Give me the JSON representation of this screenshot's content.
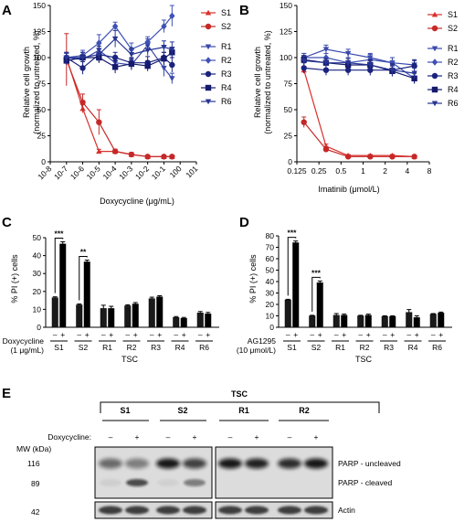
{
  "panels": {
    "A": {
      "label": "A",
      "chart_data": {
        "type": "line",
        "xlabel": "Doxycycline (μg/mL)",
        "ylabel": [
          "Relative cell growth",
          "(normalized to untreated, %)"
        ],
        "xscale": "log",
        "xticks": [
          "10-8",
          "10-7",
          "10-6",
          "10-5",
          "10-4",
          "10-3",
          "10-2",
          "10-1",
          "100",
          "101"
        ],
        "xlim": [
          -8,
          1
        ],
        "ylim": [
          0,
          150
        ],
        "yticks": [
          0,
          25,
          50,
          75,
          100,
          125,
          150
        ],
        "x": [
          -7,
          -6,
          -5,
          -4,
          -3,
          -2,
          -1,
          -0.5
        ],
        "legend_position": "right",
        "series": [
          {
            "name": "S1",
            "color": "#d9302b",
            "marker": "triangle-up",
            "values": [
              100,
              51,
              10,
              10,
              7,
              5,
              5,
              5
            ],
            "errors": [
              5,
              4,
              2,
              2,
              1,
              1,
              1,
              1
            ]
          },
          {
            "name": "S2",
            "color": "#c62828",
            "marker": "circle",
            "values": [
              98,
              57,
              38,
              10,
              7,
              5,
              5,
              5
            ],
            "errors": [
              25,
              8,
              12,
              2,
              2,
              1,
              1,
              1
            ]
          },
          {
            "name": "R1",
            "color": "#3949ab",
            "marker": "triangle-down",
            "values": [
              100,
              98,
              107,
              95,
              93,
              112,
              90,
              80
            ],
            "errors": [
              4,
              5,
              7,
              5,
              5,
              6,
              8,
              5
            ]
          },
          {
            "name": "R2",
            "color": "#3f51b5",
            "marker": "diamond",
            "values": [
              100,
              102,
              114,
              130,
              108,
              115,
              130,
              140
            ],
            "errors": [
              4,
              5,
              8,
              4,
              6,
              5,
              6,
              10
            ]
          },
          {
            "name": "R3",
            "color": "#1a237e",
            "marker": "circle",
            "values": [
              100,
              90,
              103,
              100,
              95,
              95,
              100,
              93
            ],
            "errors": [
              5,
              6,
              8,
              5,
              5,
              6,
              5,
              7
            ]
          },
          {
            "name": "R4",
            "color": "#151a6e",
            "marker": "square",
            "values": [
              97,
              100,
              100,
              91,
              94,
              92,
              99,
              105
            ],
            "errors": [
              4,
              5,
              5,
              6,
              5,
              5,
              6,
              5
            ]
          },
          {
            "name": "R6",
            "color": "#283593",
            "marker": "triangle-down",
            "values": [
              100,
              100,
              103,
              118,
              103,
              107,
              110,
              108
            ],
            "errors": [
              5,
              5,
              6,
              8,
              6,
              5,
              6,
              7
            ]
          }
        ]
      }
    },
    "B": {
      "label": "B",
      "chart_data": {
        "type": "line",
        "xlabel": "Imatinib (μmol/L)",
        "ylabel": [
          "Relative cell growth",
          "(normalized to untreated, %)"
        ],
        "xscale": "log2",
        "xticks": [
          "0.125",
          "0.25",
          "0.5",
          "1",
          "2",
          "4",
          "8"
        ],
        "xlim": [
          0.125,
          8
        ],
        "ylim": [
          0,
          150
        ],
        "yticks": [
          0,
          25,
          50,
          75,
          100,
          125,
          150
        ],
        "x": [
          0.156,
          0.3125,
          0.625,
          1.25,
          2.5,
          5
        ],
        "legend_position": "right",
        "series": [
          {
            "name": "S1",
            "color": "#d9302b",
            "marker": "triangle-up",
            "values": [
              88,
              15,
              6,
              6,
              6,
              5
            ],
            "errors": [
              3,
              2,
              1,
              1,
              1,
              1
            ]
          },
          {
            "name": "S2",
            "color": "#c62828",
            "marker": "circle",
            "values": [
              38,
              12,
              5,
              5,
              5,
              5
            ],
            "errors": [
              5,
              2,
              1,
              1,
              1,
              1
            ]
          },
          {
            "name": "R1",
            "color": "#3949ab",
            "marker": "triangle-down",
            "values": [
              100,
              108,
              104,
              100,
              95,
              93
            ],
            "errors": [
              4,
              4,
              4,
              4,
              5,
              4
            ]
          },
          {
            "name": "R2",
            "color": "#3f51b5",
            "marker": "diamond",
            "values": [
              100,
              100,
              95,
              98,
              95,
              80
            ],
            "errors": [
              4,
              4,
              5,
              5,
              5,
              5
            ]
          },
          {
            "name": "R3",
            "color": "#1a237e",
            "marker": "circle",
            "values": [
              90,
              88,
              88,
              88,
              88,
              92
            ],
            "errors": [
              5,
              5,
              5,
              5,
              6,
              6
            ]
          },
          {
            "name": "R4",
            "color": "#151a6e",
            "marker": "square",
            "values": [
              98,
              95,
              93,
              93,
              87,
              80
            ],
            "errors": [
              4,
              4,
              4,
              5,
              5,
              5
            ]
          },
          {
            "name": "R6",
            "color": "#283593",
            "marker": "triangle-down",
            "values": [
              97,
              95,
              95,
              93,
              88,
              85
            ],
            "errors": [
              4,
              4,
              4,
              4,
              5,
              5
            ]
          }
        ]
      }
    },
    "C": {
      "label": "C",
      "chart_data": {
        "type": "bar",
        "ylabel": "% PI (+) cells",
        "ylim": [
          0,
          50
        ],
        "yticks": [
          0,
          10,
          20,
          30,
          40,
          50
        ],
        "treatment_label": [
          "Doxycycline",
          "(1 μg/mL)"
        ],
        "signs": [
          "–",
          "+"
        ],
        "categories": [
          "S1",
          "S2",
          "R1",
          "R2",
          "R3",
          "R4",
          "R6"
        ],
        "group_label": "TSC",
        "values": [
          [
            16.5,
            46.5
          ],
          [
            12.5,
            36.5
          ],
          [
            10.5,
            10.5
          ],
          [
            12,
            13
          ],
          [
            16,
            17
          ],
          [
            5.5,
            5
          ],
          [
            8,
            7.5
          ]
        ],
        "errors": [
          [
            0.5,
            1.2
          ],
          [
            0.5,
            1
          ],
          [
            1.8,
            1.2
          ],
          [
            0.5,
            0.8
          ],
          [
            0.8,
            0.6
          ],
          [
            0.5,
            0.5
          ],
          [
            0.8,
            0.8
          ]
        ],
        "significance": [
          {
            "group": "S1",
            "label": "***"
          },
          {
            "group": "S2",
            "label": "**"
          }
        ]
      }
    },
    "D": {
      "label": "D",
      "chart_data": {
        "type": "bar",
        "ylabel": "% PI (+) cells",
        "ylim": [
          0,
          80
        ],
        "yticks": [
          0,
          10,
          20,
          30,
          40,
          50,
          60,
          70,
          80
        ],
        "treatment_label": [
          "AG1295",
          "(10 μmol/L)"
        ],
        "signs": [
          "–",
          "+"
        ],
        "categories": [
          "S1",
          "S2",
          "R1",
          "R2",
          "R3",
          "R4",
          "R6"
        ],
        "group_label": "TSC",
        "values": [
          [
            24,
            74
          ],
          [
            10,
            39
          ],
          [
            10.5,
            10.5
          ],
          [
            10,
            10.5
          ],
          [
            9.5,
            9.5
          ],
          [
            13,
            8.5
          ],
          [
            11.5,
            12.5
          ]
        ],
        "errors": [
          [
            0.5,
            1.5
          ],
          [
            0.5,
            1.5
          ],
          [
            1.5,
            1
          ],
          [
            0.5,
            1
          ],
          [
            0.5,
            0.5
          ],
          [
            2.5,
            1.5
          ],
          [
            0.5,
            0.8
          ]
        ],
        "significance": [
          {
            "group": "S1",
            "label": "***"
          },
          {
            "group": "S2",
            "label": "***"
          }
        ]
      }
    },
    "E": {
      "label": "E",
      "header": "TSC",
      "groups": [
        "S1",
        "S2",
        "R1",
        "R2"
      ],
      "treatment_label": "Doxycycline:",
      "signs": [
        "–",
        "+",
        "–",
        "+",
        "–",
        "+",
        "–",
        "+"
      ],
      "mw_label": "MW (kDa)",
      "mw": [
        "116",
        "89",
        "42"
      ],
      "bands": [
        "PARP - uncleaved",
        "PARP - cleaved",
        "Actin"
      ]
    }
  }
}
